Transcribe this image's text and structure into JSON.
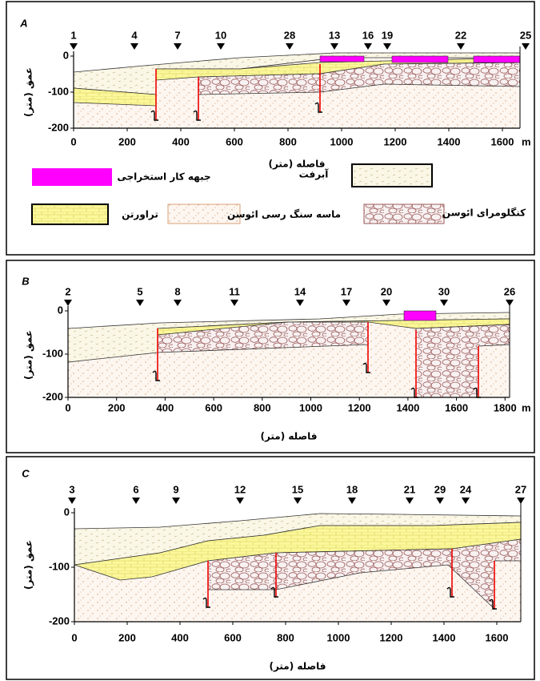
{
  "panels": [
    {
      "label": "A",
      "boreholes": [
        "1",
        "4",
        "7",
        "10",
        "28",
        "13",
        "16",
        "19",
        "22",
        "25"
      ],
      "x_ticks": [
        "0",
        "200",
        "400",
        "600",
        "800",
        "1000",
        "1200",
        "1400",
        "1600"
      ],
      "x_unit": "m",
      "y_ticks": [
        "0",
        "-100",
        "-200"
      ],
      "x_title": "فاصله (متر)",
      "y_title": "عمق (متر)"
    },
    {
      "label": "B",
      "boreholes": [
        "2",
        "5",
        "8",
        "11",
        "14",
        "17",
        "20",
        "30",
        "26"
      ],
      "x_ticks": [
        "0",
        "200",
        "400",
        "600",
        "800",
        "1000",
        "1200",
        "1400",
        "1600",
        "1800"
      ],
      "x_unit": "m",
      "y_ticks": [
        "0",
        "-100",
        "-200"
      ],
      "x_title": "فاصله (متر)",
      "y_title": "عمق (متر)"
    },
    {
      "label": "C",
      "boreholes": [
        "3",
        "6",
        "9",
        "12",
        "15",
        "18",
        "21",
        "29",
        "24",
        "27"
      ],
      "x_ticks": [
        "0",
        "200",
        "400",
        "600",
        "800",
        "1000",
        "1200",
        "1400",
        "1600"
      ],
      "y_ticks": [
        "0",
        "-100",
        "-200"
      ],
      "x_title": "فاصله (متر)",
      "y_title": "عمق (متر)"
    }
  ],
  "legend": [
    "جبهه کار استخراجی",
    "آبرفت",
    "تراورتن",
    "ماسه سنگ رسی ائوسن",
    "کنگلومرای ائوسن"
  ]
}
